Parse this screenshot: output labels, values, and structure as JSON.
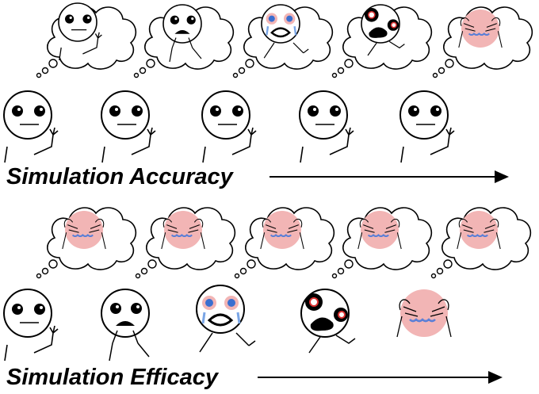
{
  "rows": [
    {
      "label": "Simulation Accuracy"
    },
    {
      "label": "Simulation Efficacy"
    }
  ]
}
